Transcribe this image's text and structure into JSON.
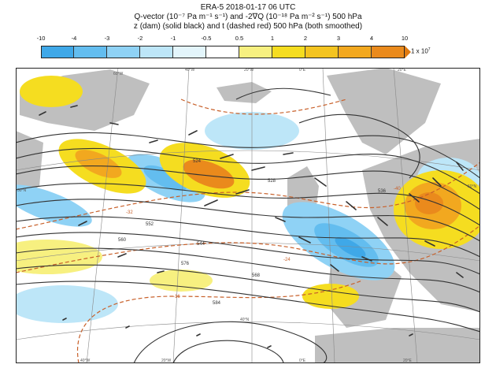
{
  "header": {
    "title": "ERA-5 2018-01-17 06 UTC",
    "line2": "Q-vector (10⁻⁷ Pa m⁻¹ s⁻¹) and -2∇Q (10⁻¹⁸ Pa m⁻² s⁻¹) 500 hPa",
    "line3": "z (dam) (solid black) and t (dashed red) 500 hPa (both smoothed)"
  },
  "colorbar": {
    "ticks": [
      "-10",
      "-4",
      "-3",
      "-2",
      "-1",
      "-0.5",
      "0.5",
      "1",
      "2",
      "3",
      "4",
      "10"
    ],
    "unit_label": "1 x 10",
    "unit_exponent": "7",
    "colors": [
      "#3fa8e8",
      "#63bdef",
      "#8fd2f5",
      "#bde6f8",
      "#e3f5fb",
      "#ffffff",
      "#f7f080",
      "#f5dd20",
      "#f4c420",
      "#f2a81f",
      "#ea8a1c"
    ]
  },
  "map": {
    "lon_labels_top": [
      "60°W",
      "40°W",
      "20°W",
      "0°E",
      "20°E"
    ],
    "lon_labels_bottom": [
      "40°W",
      "20°W",
      "0°E",
      "20°E"
    ],
    "lat_labels": [
      "50°N",
      "50°N",
      "40°N"
    ],
    "height_contour_labels": [
      "524",
      "528",
      "536",
      "544",
      "552",
      "560",
      "568",
      "576",
      "584"
    ],
    "temp_contour_labels": [
      "-40",
      "-32",
      "-24",
      "-16"
    ],
    "colors": {
      "land": "#bfbfbf",
      "height": "#333333",
      "temp": "#c8602a",
      "grid": "#888888"
    }
  }
}
